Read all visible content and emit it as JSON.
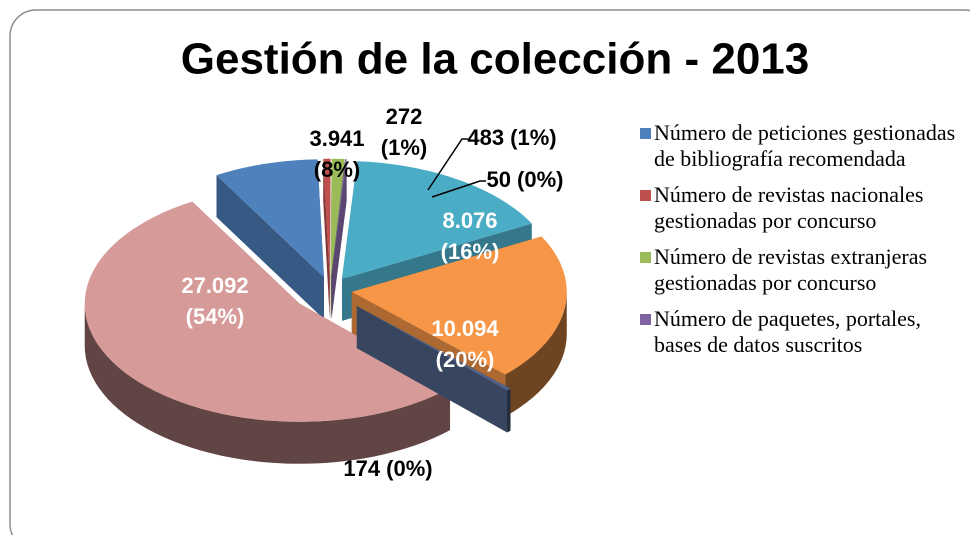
{
  "chart_data": {
    "type": "pie",
    "title": "Gestión de la colección - 2013",
    "categories": [
      "Número de peticiones gestionadas de bibliografía recomendada",
      "Número de revistas nacionales gestionadas por concurso",
      "Número de revistas extranjeras gestionadas por concurso",
      "Número de paquetes, portales, bases de datos suscritos",
      null,
      null,
      null,
      null
    ],
    "values": [
      3941,
      272,
      483,
      50,
      8076,
      10094,
      174,
      27092
    ],
    "value_labels": [
      "3.941 (8%)",
      "272 (1%)",
      "483 (1%)",
      "50 (0%)",
      "8.076 (16%)",
      "10.094 (20%)",
      "174 (0%)",
      "27.092 (54%)"
    ],
    "colors": [
      "#4f81bd",
      "#c0504d",
      "#9bbb59",
      "#8064a2",
      "#4bacc6",
      "#f79646",
      "#4f6287",
      "#d69a98"
    ],
    "legend": "right"
  }
}
